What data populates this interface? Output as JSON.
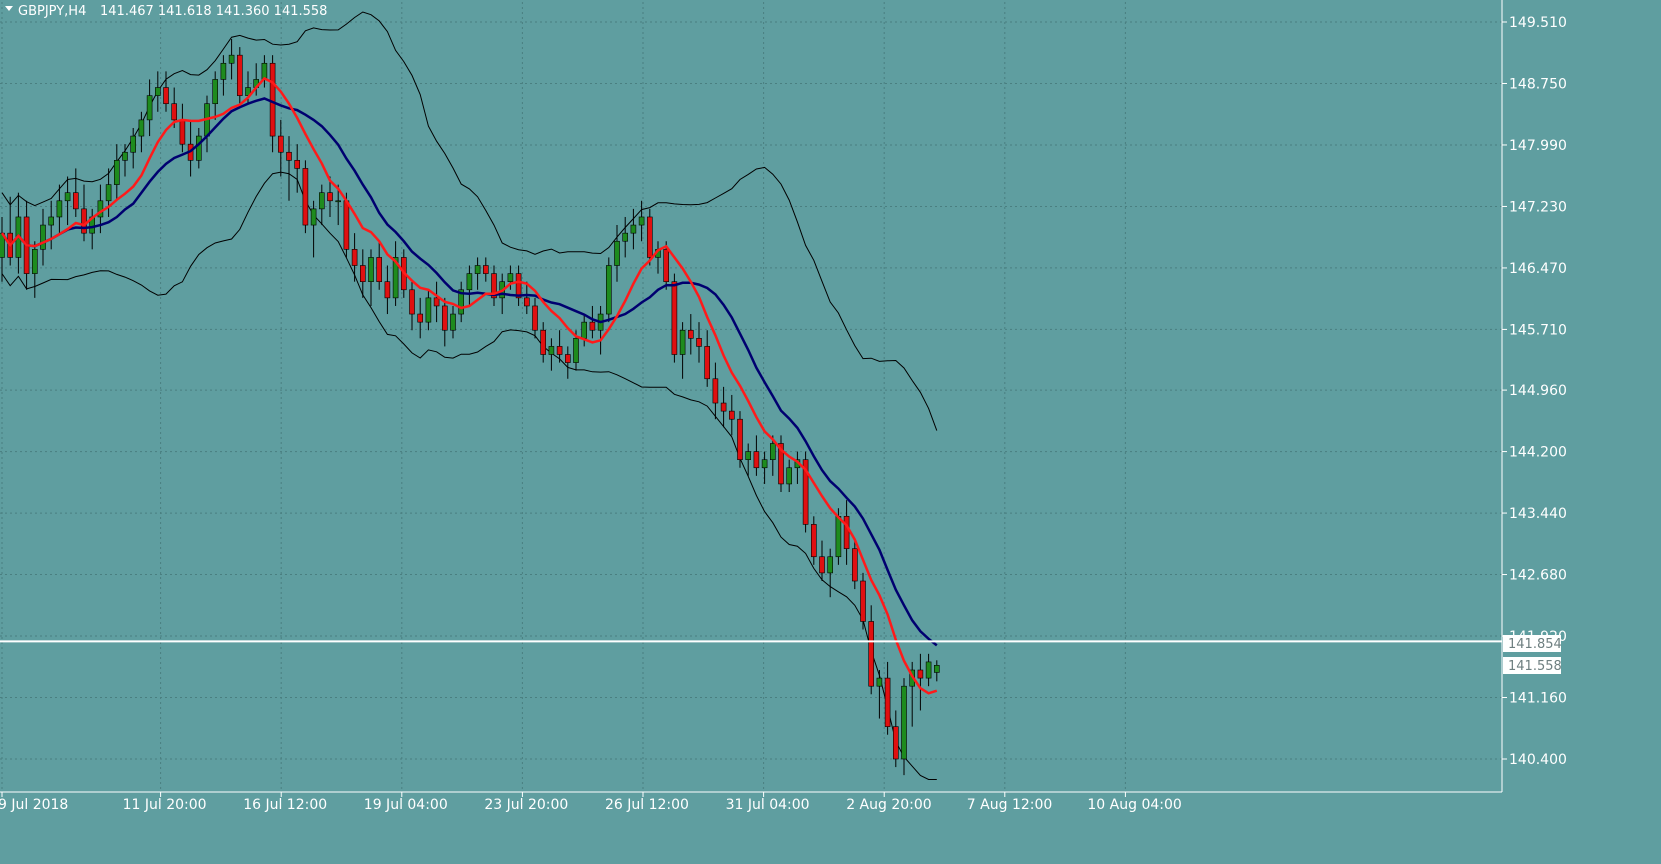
{
  "header": {
    "symbol_timeframe": "GBPJPY,H4",
    "ohlc": "141.467 141.618 141.360 141.558"
  },
  "price_tags": {
    "line_level": "141.854",
    "current_price": "141.558"
  },
  "colors": {
    "background": "#5f9ea0",
    "bull_candle": "#1e8b1e",
    "bear_candle": "#e01010",
    "fast_ma": "#ff1a1a",
    "slow_ma": "#000070",
    "bands": "#000000",
    "hline": "#ffffff"
  },
  "chart_data": {
    "type": "candlestick",
    "symbol": "GBPJPY",
    "timeframe": "H4",
    "y_ticks": [
      "149.510",
      "148.750",
      "147.990",
      "147.230",
      "146.470",
      "145.710",
      "144.960",
      "144.200",
      "143.440",
      "142.680",
      "141.920",
      "141.160",
      "140.400"
    ],
    "x_ticks": [
      "9 Jul 2018",
      "11 Jul 20:00",
      "16 Jul 12:00",
      "19 Jul 04:00",
      "23 Jul 20:00",
      "26 Jul 12:00",
      "31 Jul 04:00",
      "2 Aug 20:00",
      "7 Aug 12:00",
      "10 Aug 04:00"
    ],
    "ylim": [
      139.9,
      149.7
    ],
    "grid": true,
    "horizontal_line": 141.854,
    "last_close": 141.558,
    "candles": [
      [
        146.6,
        147.1,
        146.3,
        146.9
      ],
      [
        146.9,
        147.35,
        146.5,
        146.6
      ],
      [
        146.6,
        147.4,
        146.4,
        147.1
      ],
      [
        147.1,
        147.3,
        146.2,
        146.4
      ],
      [
        146.4,
        146.8,
        146.1,
        146.7
      ],
      [
        146.7,
        147.2,
        146.5,
        147.0
      ],
      [
        147.0,
        147.3,
        146.7,
        147.1
      ],
      [
        147.1,
        147.5,
        146.9,
        147.3
      ],
      [
        147.3,
        147.6,
        147.0,
        147.4
      ],
      [
        147.4,
        147.7,
        147.1,
        147.2
      ],
      [
        147.2,
        147.5,
        146.8,
        146.9
      ],
      [
        146.9,
        147.2,
        146.7,
        147.1
      ],
      [
        147.1,
        147.5,
        146.9,
        147.3
      ],
      [
        147.3,
        147.7,
        147.1,
        147.5
      ],
      [
        147.5,
        148.0,
        147.3,
        147.8
      ],
      [
        147.8,
        148.0,
        147.6,
        147.9
      ],
      [
        147.9,
        148.2,
        147.7,
        148.1
      ],
      [
        148.1,
        148.4,
        147.9,
        148.3
      ],
      [
        148.3,
        148.8,
        148.1,
        148.6
      ],
      [
        148.6,
        148.9,
        148.4,
        148.7
      ],
      [
        148.7,
        148.9,
        148.4,
        148.5
      ],
      [
        148.5,
        148.7,
        148.2,
        148.3
      ],
      [
        148.3,
        148.5,
        147.9,
        148.0
      ],
      [
        148.0,
        148.3,
        147.6,
        147.8
      ],
      [
        147.8,
        148.2,
        147.7,
        148.1
      ],
      [
        148.1,
        148.6,
        147.9,
        148.5
      ],
      [
        148.5,
        148.9,
        148.3,
        148.8
      ],
      [
        148.8,
        149.1,
        148.6,
        149.0
      ],
      [
        149.0,
        149.3,
        148.8,
        149.1
      ],
      [
        149.1,
        149.2,
        148.5,
        148.6
      ],
      [
        148.6,
        148.9,
        148.5,
        148.7
      ],
      [
        148.7,
        149.0,
        148.6,
        148.8
      ],
      [
        148.8,
        149.1,
        148.7,
        149.0
      ],
      [
        149.0,
        149.1,
        147.9,
        148.1
      ],
      [
        148.1,
        148.3,
        147.6,
        147.9
      ],
      [
        147.9,
        148.1,
        147.3,
        147.8
      ],
      [
        147.8,
        148.0,
        147.4,
        147.7
      ],
      [
        147.7,
        147.8,
        146.9,
        147.0
      ],
      [
        147.0,
        147.3,
        146.6,
        147.2
      ],
      [
        147.2,
        147.5,
        147.0,
        147.4
      ],
      [
        147.4,
        147.6,
        147.1,
        147.3
      ],
      [
        147.3,
        147.5,
        147.0,
        147.3
      ],
      [
        147.3,
        147.4,
        146.6,
        146.7
      ],
      [
        146.7,
        146.9,
        146.3,
        146.5
      ],
      [
        146.5,
        146.7,
        146.1,
        146.3
      ],
      [
        146.3,
        146.7,
        146.0,
        146.6
      ],
      [
        146.6,
        146.8,
        146.2,
        146.3
      ],
      [
        146.3,
        146.5,
        145.9,
        146.1
      ],
      [
        146.1,
        146.8,
        146.0,
        146.6
      ],
      [
        146.6,
        146.7,
        146.1,
        146.2
      ],
      [
        146.2,
        146.3,
        145.7,
        145.9
      ],
      [
        145.9,
        146.1,
        145.6,
        145.8
      ],
      [
        145.8,
        146.2,
        145.7,
        146.1
      ],
      [
        146.1,
        146.3,
        145.8,
        146.0
      ],
      [
        146.0,
        146.1,
        145.5,
        145.7
      ],
      [
        145.7,
        146.0,
        145.6,
        145.9
      ],
      [
        145.9,
        146.3,
        145.8,
        146.2
      ],
      [
        146.2,
        146.5,
        146.0,
        146.4
      ],
      [
        146.4,
        146.6,
        146.2,
        146.5
      ],
      [
        146.5,
        146.6,
        146.3,
        146.4
      ],
      [
        146.4,
        146.5,
        146.0,
        146.1
      ],
      [
        146.1,
        146.4,
        145.9,
        146.3
      ],
      [
        146.3,
        146.5,
        146.2,
        146.4
      ],
      [
        146.4,
        146.5,
        146.0,
        146.1
      ],
      [
        146.1,
        146.3,
        145.9,
        146.0
      ],
      [
        146.0,
        146.1,
        145.6,
        145.7
      ],
      [
        145.7,
        145.8,
        145.3,
        145.4
      ],
      [
        145.4,
        145.6,
        145.2,
        145.5
      ],
      [
        145.5,
        145.7,
        145.3,
        145.4
      ],
      [
        145.4,
        145.5,
        145.1,
        145.3
      ],
      [
        145.3,
        145.7,
        145.2,
        145.6
      ],
      [
        145.6,
        145.9,
        145.5,
        145.8
      ],
      [
        145.8,
        146.0,
        145.6,
        145.7
      ],
      [
        145.7,
        146.0,
        145.4,
        145.9
      ],
      [
        145.9,
        146.6,
        145.8,
        146.5
      ],
      [
        146.5,
        147.0,
        146.3,
        146.8
      ],
      [
        146.8,
        147.1,
        146.6,
        146.9
      ],
      [
        146.9,
        147.2,
        146.7,
        147.0
      ],
      [
        147.0,
        147.3,
        146.8,
        147.1
      ],
      [
        147.1,
        147.2,
        146.5,
        146.6
      ],
      [
        146.6,
        146.8,
        146.4,
        146.7
      ],
      [
        146.7,
        146.8,
        146.2,
        146.3
      ],
      [
        146.3,
        146.4,
        145.3,
        145.4
      ],
      [
        145.4,
        145.8,
        145.1,
        145.7
      ],
      [
        145.7,
        145.9,
        145.4,
        145.6
      ],
      [
        145.6,
        145.8,
        145.3,
        145.5
      ],
      [
        145.5,
        145.7,
        145.0,
        145.1
      ],
      [
        145.1,
        145.3,
        144.6,
        144.8
      ],
      [
        144.8,
        145.0,
        144.5,
        144.7
      ],
      [
        144.7,
        144.9,
        144.4,
        144.6
      ],
      [
        144.6,
        144.7,
        144.0,
        144.1
      ],
      [
        144.1,
        144.3,
        143.9,
        144.2
      ],
      [
        144.2,
        144.4,
        143.9,
        144.0
      ],
      [
        144.0,
        144.2,
        143.8,
        144.1
      ],
      [
        144.1,
        144.4,
        143.9,
        144.3
      ],
      [
        144.3,
        144.4,
        143.7,
        143.8
      ],
      [
        143.8,
        144.1,
        143.7,
        144.0
      ],
      [
        144.0,
        144.2,
        143.8,
        144.1
      ],
      [
        144.1,
        144.2,
        143.2,
        143.3
      ],
      [
        143.3,
        143.4,
        142.8,
        142.9
      ],
      [
        142.9,
        143.1,
        142.6,
        142.7
      ],
      [
        142.7,
        143.0,
        142.4,
        142.9
      ],
      [
        142.9,
        143.5,
        142.8,
        143.4
      ],
      [
        143.4,
        143.6,
        142.8,
        143.0
      ],
      [
        143.0,
        143.1,
        142.5,
        142.6
      ],
      [
        142.6,
        142.7,
        142.0,
        142.1
      ],
      [
        142.1,
        142.3,
        141.2,
        141.3
      ],
      [
        141.3,
        141.5,
        140.9,
        141.4
      ],
      [
        141.4,
        141.6,
        140.7,
        140.8
      ],
      [
        140.8,
        141.0,
        140.3,
        140.4
      ],
      [
        140.4,
        141.4,
        140.2,
        141.3
      ],
      [
        141.3,
        141.6,
        140.8,
        141.5
      ],
      [
        141.5,
        141.7,
        141.0,
        141.4
      ],
      [
        141.4,
        141.7,
        141.3,
        141.6
      ],
      [
        141.47,
        141.62,
        141.36,
        141.558
      ]
    ]
  }
}
